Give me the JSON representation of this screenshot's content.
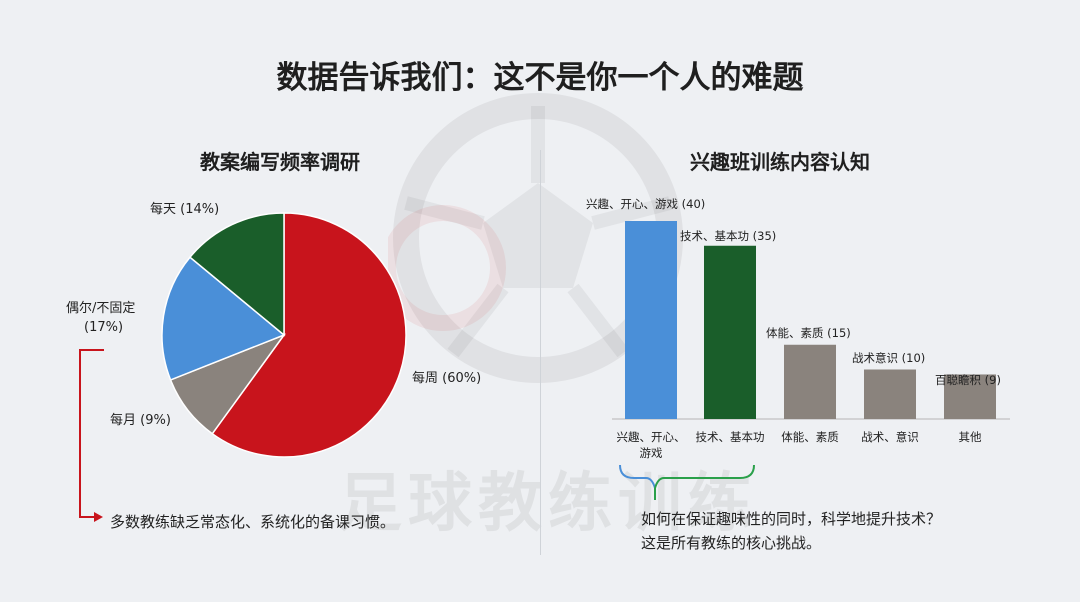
{
  "title": "数据告诉我们：这不是你一个人的难题",
  "watermark": "足球教练训练",
  "colors": {
    "red": "#c8141c",
    "blue": "#4a8fd8",
    "green": "#1a5e2a",
    "gray": "#8a837d",
    "bracket": "#c8141c",
    "brace": "#2aa04a",
    "brace_blue": "#4a8fd8"
  },
  "chart_data": [
    {
      "type": "pie",
      "title": "教案编写频率调研",
      "slices": [
        {
          "label": "每周",
          "value": 60,
          "display": "每周 (60%)",
          "color": "#c8141c"
        },
        {
          "label": "每月",
          "value": 9,
          "display": "每月 (9%)",
          "color": "#8a837d"
        },
        {
          "label": "偶尔/不固定",
          "value": 17,
          "display_lines": [
            "偶尔/不固定",
            "(17%)"
          ],
          "color": "#4a8fd8"
        },
        {
          "label": "每天",
          "value": 14,
          "display": "每天 (14%)",
          "color": "#1a5e2a"
        }
      ]
    },
    {
      "type": "bar",
      "title": "兴趣班训练内容认知",
      "categories": [
        "兴趣、开心、游戏",
        "技术、基本功",
        "体能、素质",
        "战术、意识",
        "其他"
      ],
      "category_lines": [
        [
          "兴趣、开心、",
          "游戏"
        ],
        [
          "技术、基本功"
        ],
        [
          "体能、素质"
        ],
        [
          "战术、意识"
        ],
        [
          "其他"
        ]
      ],
      "values": [
        40,
        35,
        15,
        10,
        9
      ],
      "data_labels": [
        "兴趣、开心、游戏 (40)",
        "技术、基本功 (35)",
        "体能、素质 (15)",
        "战术意识 (10)",
        "百聪瞻积 (9)"
      ],
      "colors": [
        "#4a8fd8",
        "#1a5e2a",
        "#8a837d",
        "#8a837d",
        "#8a837d"
      ],
      "ylim": [
        0,
        40
      ]
    }
  ],
  "takeaways": {
    "left": "多数教练缺乏常态化、系统化的备课习惯。",
    "right_lines": [
      "如何在保证趣味性的同时，科学地提升技术？",
      "这是所有教练的核心挑战。"
    ]
  }
}
